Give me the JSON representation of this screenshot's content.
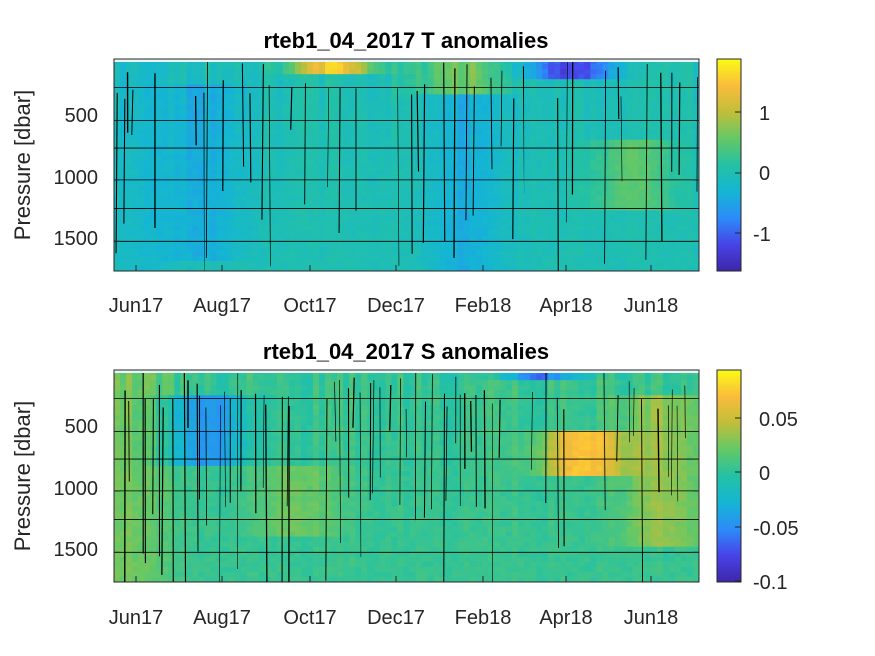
{
  "chart_data": [
    {
      "type": "heatmap",
      "title": "rteb1_04_2017 T anomalies",
      "ylabel": "Pressure [dbar]",
      "x_ticks": [
        "Jun17",
        "Aug17",
        "Oct17",
        "Dec17",
        "Feb18",
        "Apr18",
        "Jun18"
      ],
      "y_ticks": [
        "500",
        "1000",
        "1500"
      ],
      "ylim": [
        1800,
        0
      ],
      "y_reversed": true,
      "colorbar": {
        "ticks": [
          "1",
          "0",
          "-1"
        ],
        "range": [
          -1.6,
          1.85
        ]
      },
      "gridlines": true,
      "features": [
        {
          "x_month": 7.2,
          "depth_range": [
            0,
            120
          ],
          "anomaly": 1.5
        },
        {
          "x_month": 3.0,
          "depth_range": [
            200,
            1700
          ],
          "anomaly": -0.35
        },
        {
          "x_month": 11.5,
          "depth_range": [
            0,
            300
          ],
          "anomaly": 0.6
        },
        {
          "x_month": 11.5,
          "depth_range": [
            300,
            1800
          ],
          "anomaly": -0.4
        },
        {
          "x_month": 15.0,
          "depth_range": [
            0,
            150
          ],
          "anomaly": -1.2
        },
        {
          "x_month": 17.0,
          "depth_range": [
            700,
            1300
          ],
          "anomaly": 0.5
        },
        {
          "x_month": 1.0,
          "depth_range": [
            0,
            1800
          ],
          "anomaly": -0.2
        }
      ]
    },
    {
      "type": "heatmap",
      "title": "rteb1_04_2017 S anomalies",
      "ylabel": "Pressure [dbar]",
      "x_ticks": [
        "Jun17",
        "Aug17",
        "Oct17",
        "Dec17",
        "Feb18",
        "Apr18",
        "Jun18"
      ],
      "y_ticks": [
        "500",
        "1000",
        "1500"
      ],
      "ylim": [
        1800,
        0
      ],
      "y_reversed": true,
      "colorbar": {
        "ticks": [
          "0.05",
          "0",
          "-0.05",
          "-0.1"
        ],
        "range": [
          -0.105,
          0.09
        ]
      },
      "gridlines": true,
      "features": [
        {
          "x_month": 0.5,
          "depth_range": [
            0,
            1800
          ],
          "anomaly": 0.02
        },
        {
          "x_month": 3.0,
          "depth_range": [
            200,
            800
          ],
          "anomaly": -0.05
        },
        {
          "x_month": 14.0,
          "depth_range": [
            0,
            100
          ],
          "anomaly": -0.06
        },
        {
          "x_month": 15.4,
          "depth_range": [
            500,
            900
          ],
          "anomaly": 0.07
        },
        {
          "x_month": 18.0,
          "depth_range": [
            200,
            1500
          ],
          "anomaly": 0.03
        },
        {
          "x_month": 6.0,
          "depth_range": [
            800,
            1400
          ],
          "anomaly": 0.02
        }
      ]
    }
  ],
  "colormap": [
    "#3e26a8",
    "#4743e8",
    "#2c8cf8",
    "#14b6d3",
    "#24c1a4",
    "#64c866",
    "#c0be3a",
    "#fbbc3c",
    "#f9fb15"
  ]
}
